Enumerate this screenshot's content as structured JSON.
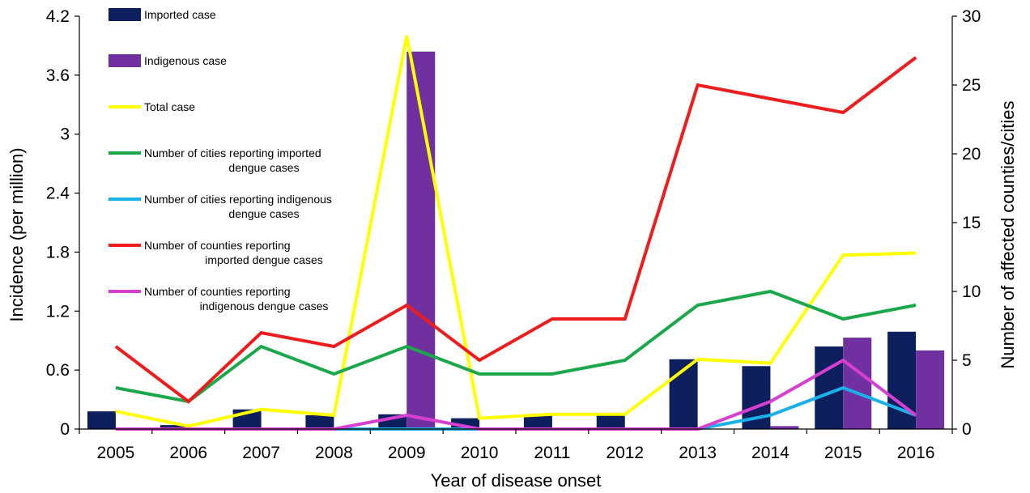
{
  "chart_data": {
    "type": "bar",
    "categories": [
      "2005",
      "2006",
      "2007",
      "2008",
      "2009",
      "2010",
      "2011",
      "2012",
      "2013",
      "2014",
      "2015",
      "2016"
    ],
    "xlabel": "Year of disease onset",
    "ylabel": "Incidence (per million)",
    "y2label": "Number of affected counties/cities",
    "ylim": [
      0,
      4.2
    ],
    "y2lim": [
      0,
      30
    ],
    "yticks": [
      "0",
      "0.6",
      "1.2",
      "1.8",
      "2.4",
      "3",
      "3.6",
      "4.2"
    ],
    "y2ticks": [
      "0",
      "5",
      "10",
      "15",
      "20",
      "25",
      "30"
    ],
    "bar_series": [
      {
        "name": "Imported case",
        "color": "#0d1f5c",
        "axis": "left",
        "values": [
          0.18,
          0.04,
          0.2,
          0.14,
          0.15,
          0.11,
          0.15,
          0.15,
          0.71,
          0.64,
          0.84,
          0.99
        ]
      },
      {
        "name": "Indigenous case",
        "color": "#7030a0",
        "axis": "left",
        "values": [
          0,
          0,
          0,
          0,
          3.84,
          0,
          0,
          0,
          0,
          0.03,
          0.93,
          0.8
        ]
      }
    ],
    "line_series": [
      {
        "name": "Total case",
        "color": "#ffff00",
        "axis": "left",
        "values": [
          0.18,
          0.03,
          0.2,
          0.14,
          4.0,
          0.11,
          0.15,
          0.15,
          0.71,
          0.67,
          1.77,
          1.79
        ]
      },
      {
        "name": "Number of cities reporting imported dengue cases",
        "color": "#1ba84a",
        "axis": "right",
        "values": [
          3,
          2,
          6,
          4,
          6,
          4,
          4,
          5,
          9,
          10,
          8,
          9
        ]
      },
      {
        "name": "Number of cities reporting indigenous dengue cases",
        "color": "#1ab0e8",
        "axis": "right",
        "values": [
          0,
          0,
          0,
          0,
          0,
          0,
          0,
          0,
          0,
          1,
          3,
          1
        ]
      },
      {
        "name": "Number of counties reporting imported dengue cases",
        "color": "#ee1c1c",
        "axis": "right",
        "values": [
          6,
          2,
          7,
          6,
          9,
          5,
          8,
          8,
          25,
          24,
          23,
          27
        ]
      },
      {
        "name": "Number of counties reporting indigenous dengue cases",
        "color": "#d63fd0",
        "axis": "right",
        "values": [
          0,
          0,
          0,
          0,
          1,
          0,
          0,
          0,
          0,
          2,
          5,
          1
        ]
      }
    ],
    "legend": [
      {
        "line1": "Imported case",
        "line2": "",
        "kind": "bar",
        "color": "#0d1f5c"
      },
      {
        "line1": "Indigenous case",
        "line2": "",
        "kind": "bar",
        "color": "#7030a0"
      },
      {
        "line1": "Total case",
        "line2": "",
        "kind": "line",
        "color": "#ffff00"
      },
      {
        "line1": "Number of cities reporting imported",
        "line2": "dengue cases",
        "kind": "line",
        "color": "#1ba84a"
      },
      {
        "line1": "Number of cities reporting indigenous",
        "line2": "dengue cases",
        "kind": "line",
        "color": "#1ab0e8"
      },
      {
        "line1": "Number of counties reporting",
        "line2": "imported dengue cases",
        "kind": "line",
        "color": "#ee1c1c"
      },
      {
        "line1": "Number of counties reporting",
        "line2": "indigenous dengue cases",
        "kind": "line",
        "color": "#d63fd0"
      }
    ],
    "legend_position": "top-left",
    "grid": false
  }
}
